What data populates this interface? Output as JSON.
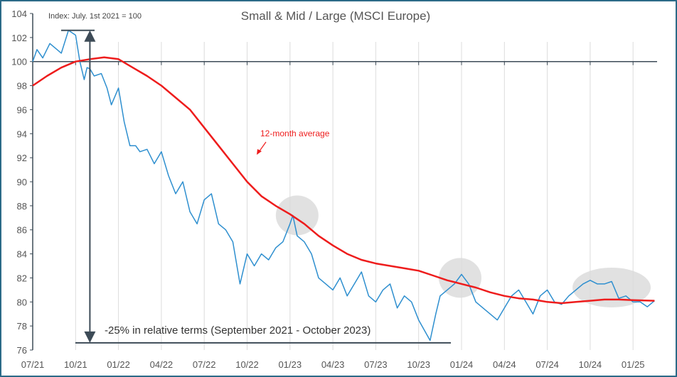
{
  "chart_data": {
    "type": "line",
    "title": "Small & Mid / Large (MSCI Europe)",
    "subtitle": "Index: July. 1st 2021 = 100",
    "xlabel": "",
    "ylabel": "",
    "ylim": [
      76,
      104
    ],
    "yticks": [
      76,
      78,
      80,
      82,
      84,
      86,
      88,
      90,
      92,
      94,
      96,
      98,
      100,
      102,
      104
    ],
    "xlim": [
      0,
      43.5
    ],
    "xtick_labels": [
      "07/21",
      "10/21",
      "01/22",
      "04/22",
      "07/22",
      "10/22",
      "01/23",
      "04/23",
      "07/23",
      "10/23",
      "01/24",
      "04/24",
      "07/24",
      "10/24",
      "01/25"
    ],
    "x_unit": "months since 07/21",
    "reference_line": 100,
    "grid": "vertical",
    "colors": {
      "index": "#2e8fcf",
      "average": "#ee1c1c",
      "axis": "#3d4b57",
      "grid": "#dcdcdc",
      "highlight": "#d9d9d9",
      "frame": "#2b6a88"
    },
    "series": [
      {
        "name": "Small & Mid / Large",
        "x": [
          0,
          0.3,
          0.7,
          1.2,
          1.7,
          2,
          2.5,
          3,
          3.3,
          3.6,
          3.8,
          4,
          4.3,
          4.8,
          5.2,
          5.5,
          6,
          6.4,
          6.8,
          7.2,
          7.5,
          8,
          8.5,
          9,
          9.5,
          10,
          10.5,
          11,
          11.5,
          12,
          12.5,
          13,
          13.5,
          14,
          14.5,
          15,
          15.5,
          16,
          16.5,
          17,
          17.5,
          18,
          18.2,
          18.5,
          19,
          19.5,
          20,
          20.5,
          21,
          21.5,
          22,
          22.5,
          23,
          23.5,
          24,
          24.5,
          25,
          25.5,
          26,
          26.5,
          27,
          27.8,
          28.2,
          28.5,
          29,
          29.5,
          30,
          30.5,
          31,
          31.5,
          32,
          32.5,
          33,
          33.5,
          34,
          34.5,
          35,
          35.5,
          36,
          36.5,
          37,
          37.5,
          38,
          38.5,
          39,
          39.5,
          40,
          40.5,
          41,
          41.5,
          42,
          42.5,
          43,
          43.5
        ],
        "values": [
          100,
          101,
          100.3,
          101.5,
          101,
          100.7,
          102.6,
          102.2,
          100,
          98.5,
          99.5,
          99.4,
          98.8,
          99,
          97.8,
          96.4,
          97.8,
          95,
          93,
          93,
          92.5,
          92.7,
          91.5,
          92.5,
          90.5,
          89,
          90,
          87.5,
          86.5,
          88.5,
          89,
          86.5,
          86,
          85,
          81.5,
          84,
          83,
          84,
          83.5,
          84.5,
          85,
          86.5,
          87.2,
          85.5,
          85,
          84,
          82,
          81.5,
          81,
          82,
          80.5,
          81.5,
          82.5,
          80.5,
          80,
          81,
          81.5,
          79.5,
          80.5,
          80,
          78.5,
          76.8,
          79,
          80.5,
          81,
          81.5,
          82.3,
          81.5,
          80,
          79.5,
          79,
          78.5,
          79.5,
          80.5,
          81,
          80,
          79,
          80.5,
          81,
          80,
          79.8,
          80.5,
          81,
          81.5,
          81.8,
          81.5,
          81.5,
          81.7,
          80.3,
          80.5,
          80,
          80,
          79.6,
          80.1
        ]
      },
      {
        "name": "12-month average",
        "x": [
          0,
          1,
          2,
          3,
          4,
          5,
          6,
          7,
          8,
          9,
          10,
          11,
          12,
          13,
          14,
          15,
          16,
          17,
          18,
          19,
          20,
          21,
          22,
          23,
          24,
          25,
          26,
          27,
          28,
          29,
          30,
          31,
          32,
          33,
          34,
          35,
          36,
          37,
          38,
          39,
          40,
          41,
          42,
          43.5
        ],
        "values": [
          98,
          98.8,
          99.5,
          100,
          100.2,
          100.35,
          100.2,
          99.5,
          98.8,
          98,
          97,
          96,
          94.5,
          93,
          91.5,
          90,
          88.8,
          88,
          87.3,
          86.5,
          85.5,
          84.7,
          84,
          83.5,
          83.2,
          83,
          82.8,
          82.6,
          82.2,
          81.8,
          81.5,
          81.2,
          80.8,
          80.5,
          80.3,
          80.2,
          80,
          79.9,
          80,
          80.1,
          80.2,
          80.2,
          80.15,
          80.1
        ]
      }
    ],
    "annotations": {
      "average_label": "12-month average",
      "drawdown_label": "-25% in relative terms (September 2021 - October 2023)",
      "drawdown": {
        "x": 4,
        "from": 102.6,
        "to": 76.6
      },
      "highlights": [
        {
          "x": 18.5,
          "y": 87.2
        },
        {
          "x": 29.9,
          "y": 82
        },
        {
          "x": 40.5,
          "y": 81.2
        }
      ]
    }
  }
}
